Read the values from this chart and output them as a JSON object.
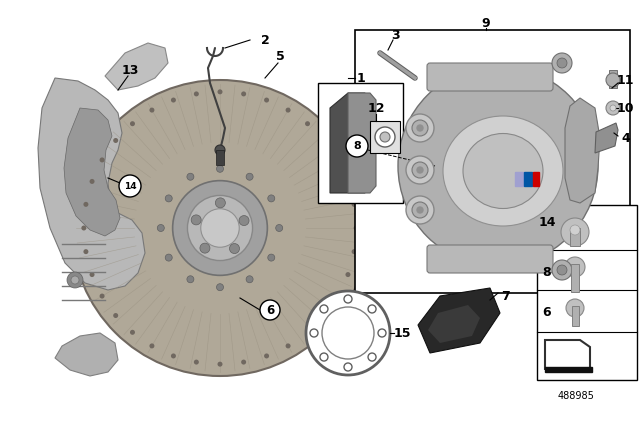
{
  "bg_color": "#ffffff",
  "part_number": "488985",
  "colors": {
    "white": "#ffffff",
    "black": "#000000",
    "light_gray": "#c8c8c8",
    "mid_gray": "#a0a0a0",
    "dark_gray": "#606060",
    "very_light": "#e8e8e8",
    "bmw_blue": "#0055a5",
    "bmw_red": "#cc0000",
    "rubber_dark": "#2a2a2a",
    "line": "#000000"
  }
}
